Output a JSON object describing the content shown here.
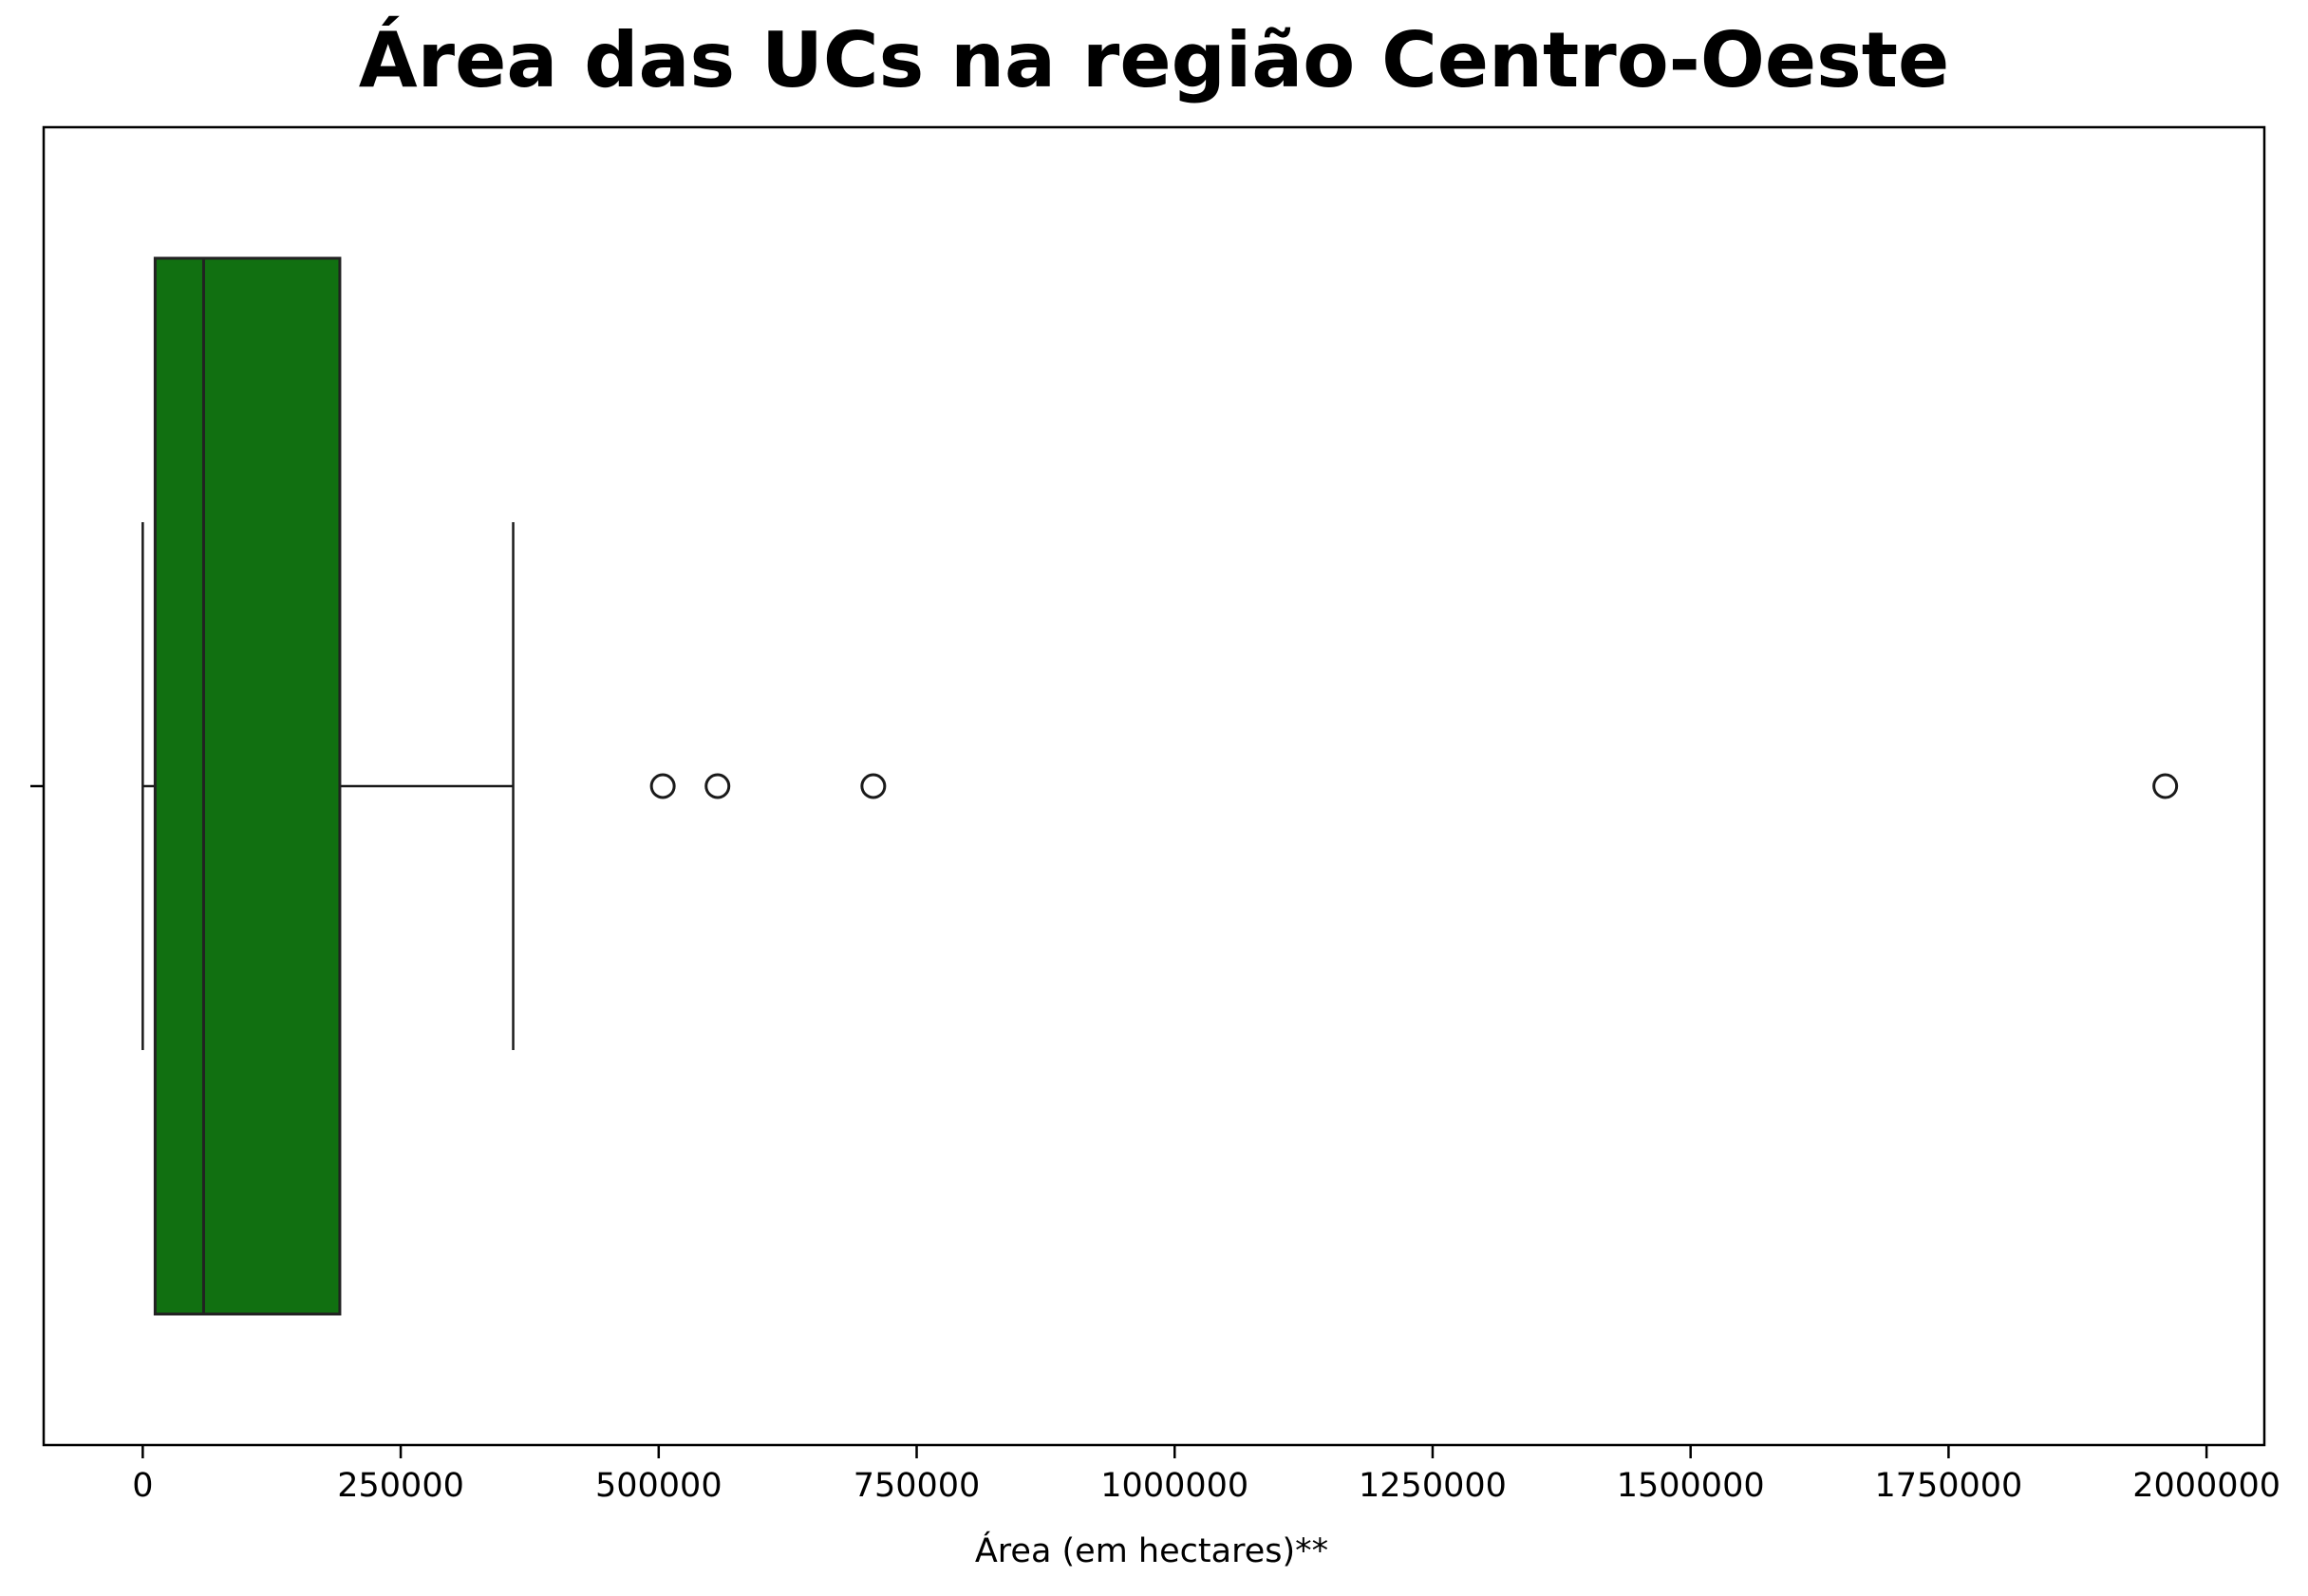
{
  "chart_data": {
    "type": "boxplot",
    "title": "Área das UCs na região Centro-Oeste",
    "xlabel": "Área (em hectares)**",
    "ylabel": "",
    "xlim": [
      -96000,
      2056000
    ],
    "xticks": [
      0,
      250000,
      500000,
      750000,
      1000000,
      1250000,
      1500000,
      1750000,
      2000000
    ],
    "xtick_labels": [
      "0",
      "250000",
      "500000",
      "750000",
      "1000000",
      "1250000",
      "1500000",
      "1750000",
      "2000000"
    ],
    "grid": false,
    "legend": "none",
    "box": {
      "whisker_low": 0,
      "q1": 12000,
      "median": 59000,
      "q3": 191000,
      "whisker_high": 359000
    },
    "outliers": [
      504000,
      557000,
      708000,
      1960000
    ]
  },
  "colors": {
    "box_fill": "#117011",
    "box_edge": "#222222",
    "line": "#1a1a1a",
    "axes": "#000000"
  }
}
